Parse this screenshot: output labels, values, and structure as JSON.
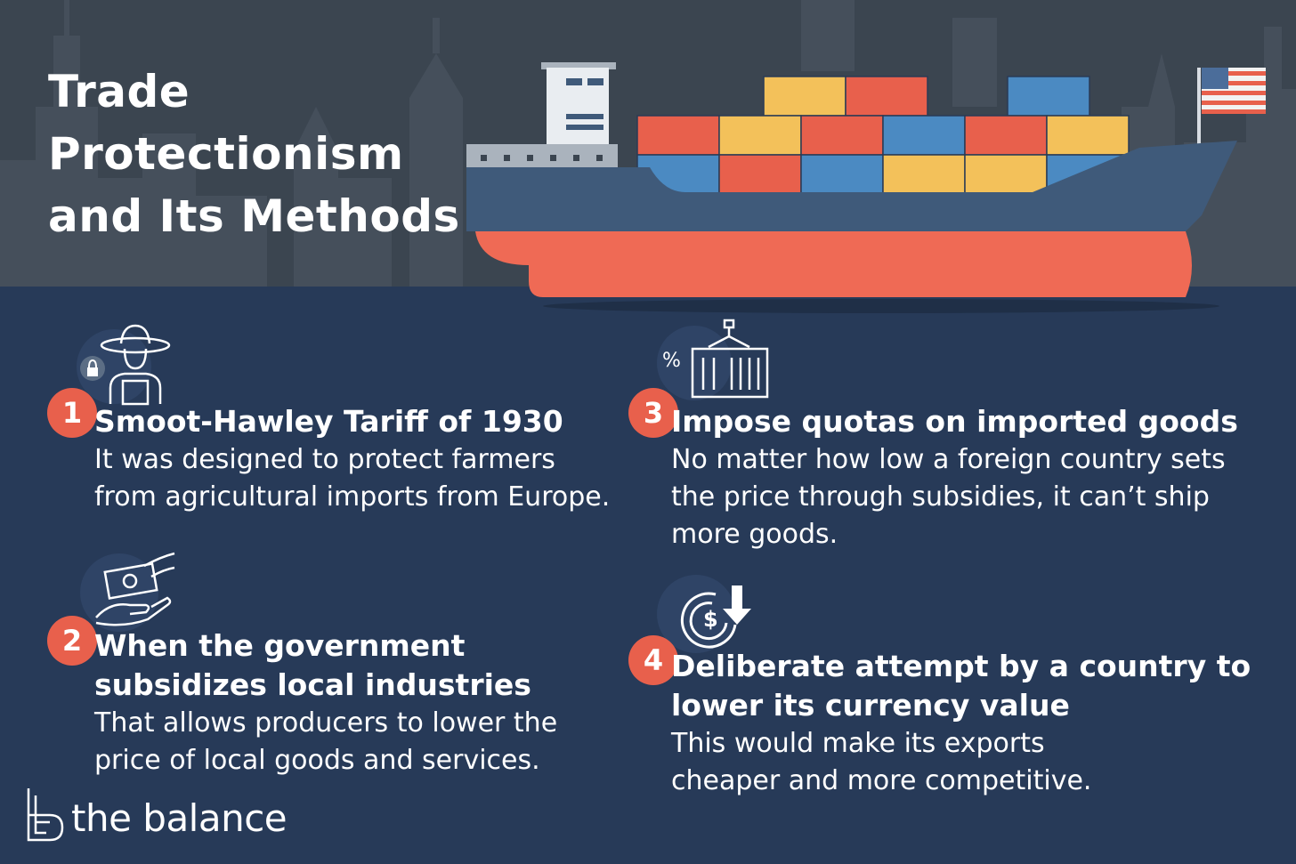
{
  "title": {
    "line1": "Trade",
    "line2": "Protectionism",
    "line3": "and Its Methods"
  },
  "colors": {
    "top_band": "#3b4550",
    "bottom_band": "#273a58",
    "accent": "#e8604c",
    "hull_blue": "#3f5a7a",
    "hull_red": "#ef6a55",
    "container_red": "#e8604c",
    "container_yellow": "#f3c15a",
    "container_blue": "#4b8ac2"
  },
  "items": [
    {
      "number": "1",
      "heading_lines": [
        "Smoot-Hawley Tariff of 1930"
      ],
      "body_lines": [
        "It was designed to protect farmers",
        "from agricultural imports from Europe."
      ],
      "icon": "farmer-lock-icon"
    },
    {
      "number": "2",
      "heading_lines": [
        "When the government",
        "subsidizes local industries"
      ],
      "body_lines": [
        "That allows producers to lower the",
        "price of local goods and services."
      ],
      "icon": "money-hand-icon"
    },
    {
      "number": "3",
      "heading_lines": [
        "Impose quotas on imported goods"
      ],
      "body_lines": [
        "No matter how low a foreign country sets",
        "the price through subsidies, it can’t ship",
        "more goods."
      ],
      "icon": "container-percent-icon"
    },
    {
      "number": "4",
      "heading_lines": [
        "Deliberate attempt by a country to",
        "lower its currency value"
      ],
      "body_lines": [
        "This would make its exports",
        "cheaper and more competitive."
      ],
      "icon": "currency-down-icon"
    }
  ],
  "brand": {
    "name": "the balance",
    "logo": "balance-logo-icon"
  }
}
